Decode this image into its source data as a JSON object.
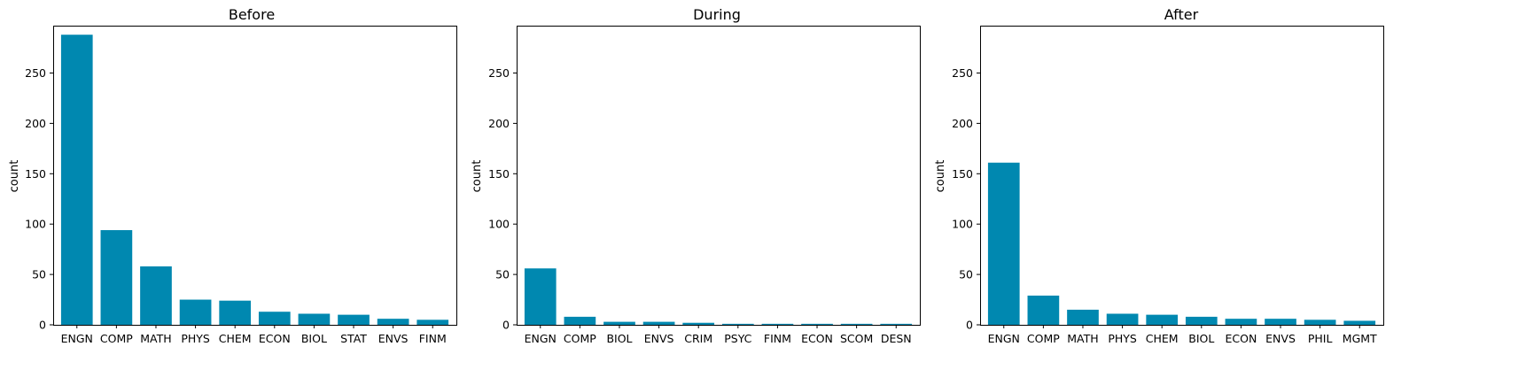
{
  "bar_color": "#0088b0",
  "chart_data": [
    {
      "type": "bar",
      "title": "Before",
      "xlabel": "",
      "ylabel": "count",
      "ylim": [
        0,
        297
      ],
      "yticks": [
        0,
        50,
        100,
        150,
        200,
        250
      ],
      "categories": [
        "ENGN",
        "COMP",
        "MATH",
        "PHYS",
        "CHEM",
        "ECON",
        "BIOL",
        "STAT",
        "ENVS",
        "FINM"
      ],
      "values": [
        288,
        94,
        58,
        25,
        24,
        13,
        11,
        10,
        6,
        5
      ]
    },
    {
      "type": "bar",
      "title": "During",
      "xlabel": "",
      "ylabel": "count",
      "ylim": [
        0,
        297
      ],
      "yticks": [
        0,
        50,
        100,
        150,
        200,
        250
      ],
      "categories": [
        "ENGN",
        "COMP",
        "BIOL",
        "ENVS",
        "CRIM",
        "PSYC",
        "FINM",
        "ECON",
        "SCOM",
        "DESN"
      ],
      "values": [
        56,
        8,
        3,
        3,
        2,
        1,
        1,
        1,
        1,
        1
      ]
    },
    {
      "type": "bar",
      "title": "After",
      "xlabel": "",
      "ylabel": "count",
      "ylim": [
        0,
        297
      ],
      "yticks": [
        0,
        50,
        100,
        150,
        200,
        250
      ],
      "categories": [
        "ENGN",
        "COMP",
        "MATH",
        "PHYS",
        "CHEM",
        "BIOL",
        "ECON",
        "ENVS",
        "PHIL",
        "MGMT"
      ],
      "values": [
        161,
        29,
        15,
        11,
        10,
        8,
        6,
        6,
        5,
        4
      ]
    }
  ]
}
